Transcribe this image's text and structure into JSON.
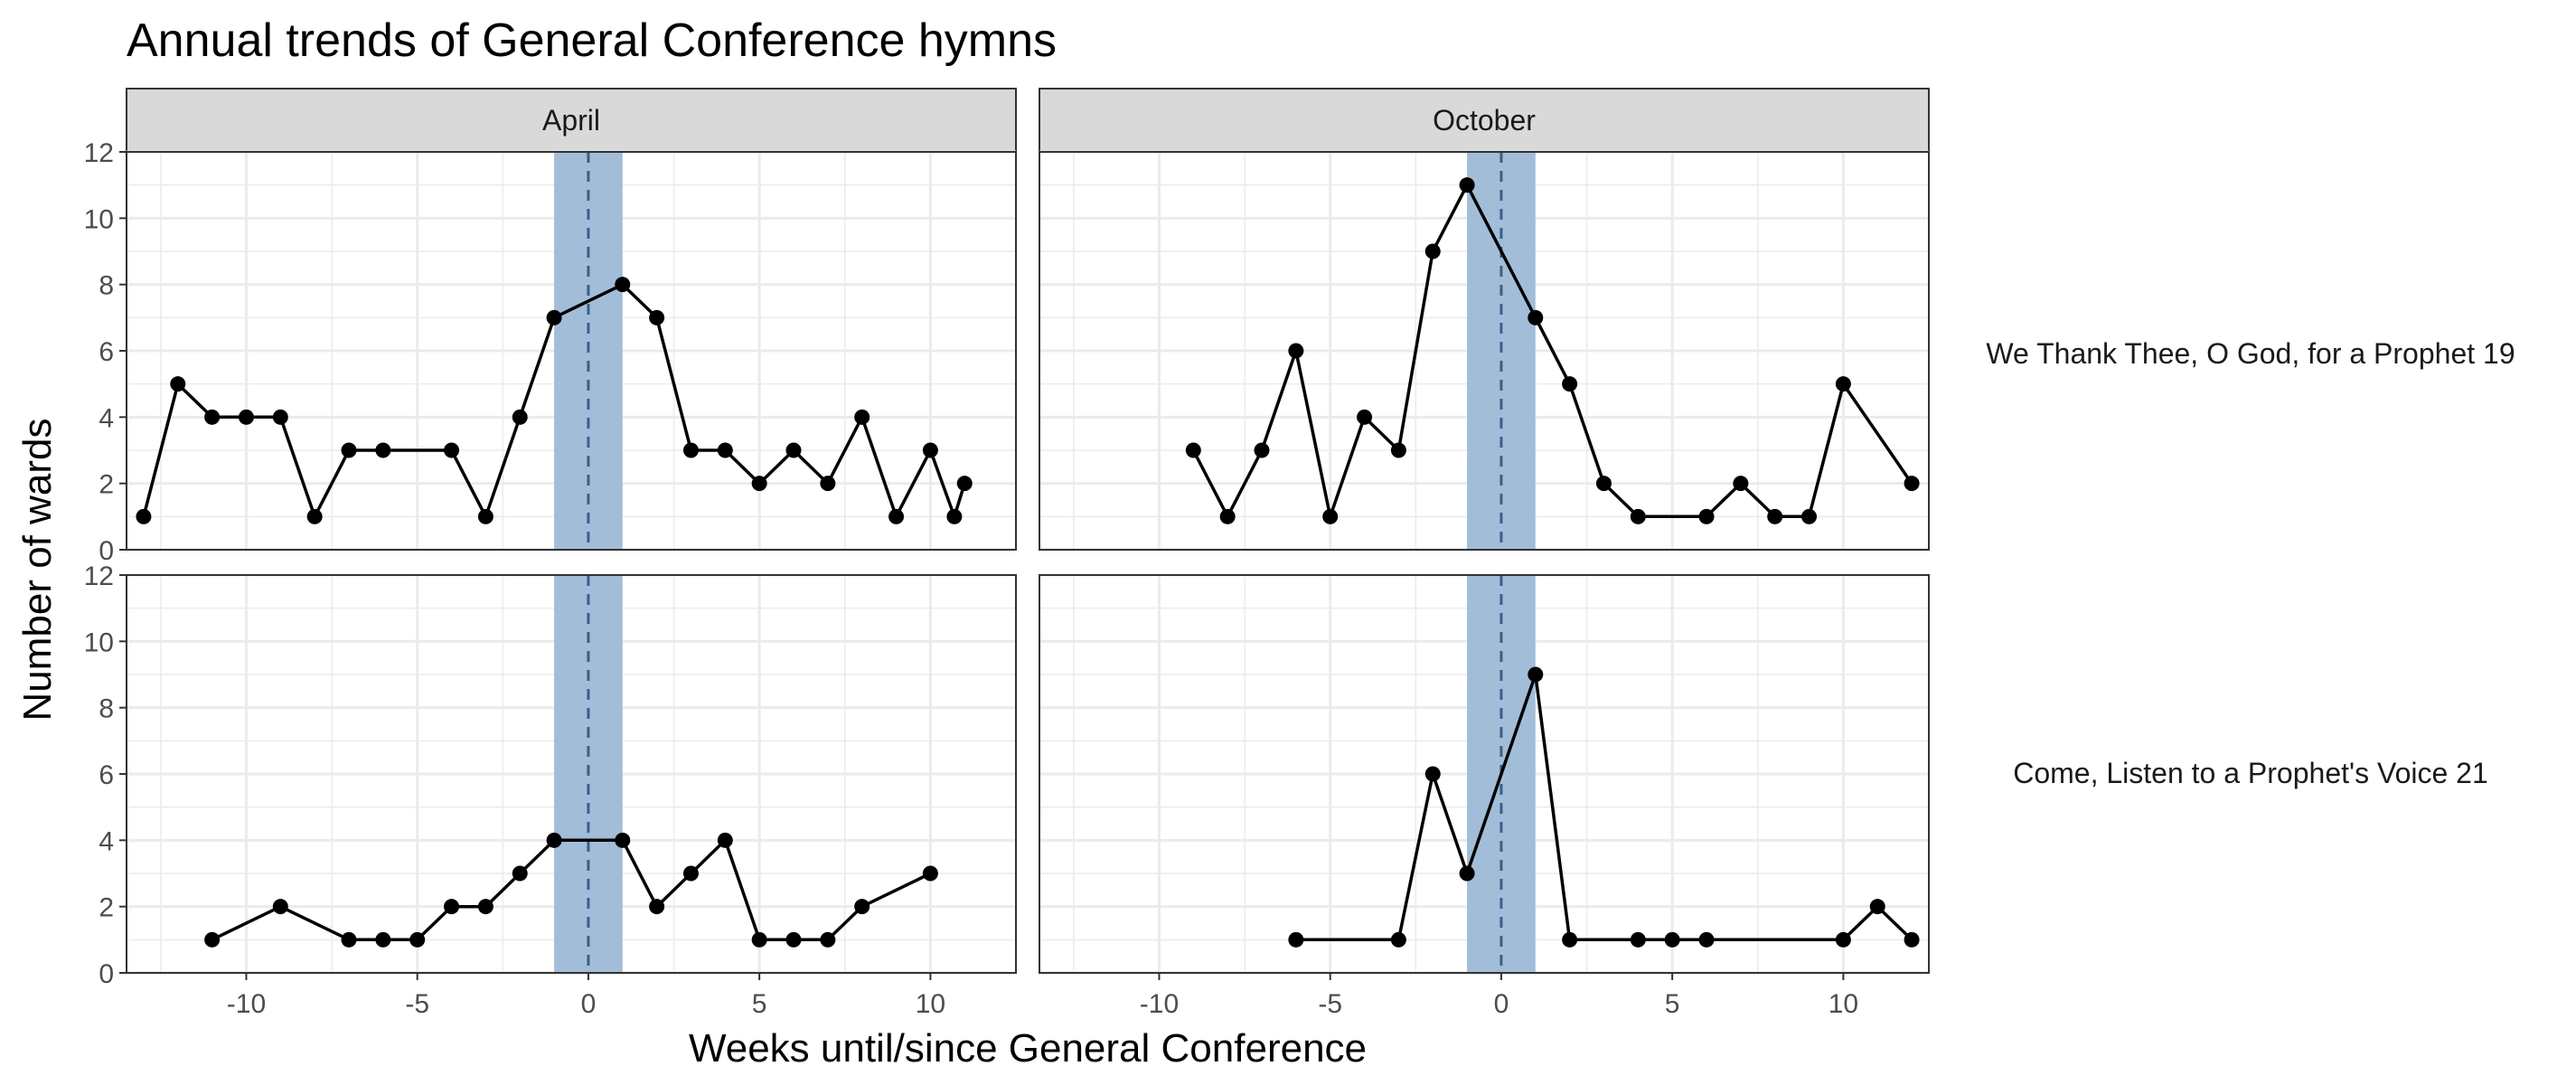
{
  "chart_data": {
    "type": "line",
    "title": "Annual trends of General Conference hymns",
    "xlabel": "Weeks until/since General Conference",
    "ylabel": "Number of wards",
    "columns": [
      "April",
      "October"
    ],
    "rows": [
      "We Thank Thee, O God, for a Prophet 19",
      "Come, Listen to a Prophet's Voice 21"
    ],
    "xlim": [
      -13.5,
      12.5
    ],
    "ylim": [
      0,
      12
    ],
    "x_ticks": [
      -10,
      -5,
      0,
      5,
      10
    ],
    "x_tick_labels": [
      "-10",
      "-5",
      "0",
      "5",
      "10"
    ],
    "y_ticks": [
      0,
      2,
      4,
      6,
      8,
      10,
      12
    ],
    "y_tick_labels": [
      "0",
      "2",
      "4",
      "6",
      "8",
      "10",
      "12"
    ],
    "highlight_band": [
      -1,
      1
    ],
    "reference_line_x": 0,
    "grid": true,
    "colors": {
      "band": "#a2bdd8",
      "reference_line": "#3b5f8a",
      "series": "#000000",
      "strip_background": "#d9d9d9",
      "panel_border": "#333333",
      "grid": "#ebebeb"
    },
    "panels": [
      {
        "row": 0,
        "column": 0,
        "x": [
          -13,
          -12,
          -11,
          -10,
          -9,
          -8,
          -7,
          -6,
          -4,
          -3,
          -2,
          -1,
          1,
          2,
          3,
          4,
          5,
          6,
          7,
          8,
          9,
          10,
          10.7,
          11
        ],
        "y": [
          1,
          5,
          4,
          4,
          4,
          1,
          3,
          3,
          3,
          1,
          4,
          7,
          8,
          7,
          3,
          3,
          2,
          3,
          2,
          4,
          1,
          3,
          1,
          2
        ]
      },
      {
        "row": 0,
        "column": 1,
        "x": [
          -9,
          -8,
          -7,
          -6,
          -5,
          -4,
          -3,
          -2,
          -1,
          1,
          2,
          3,
          4,
          6,
          7,
          8,
          9,
          10,
          12
        ],
        "y": [
          3,
          1,
          3,
          6,
          1,
          4,
          3,
          9,
          11,
          7,
          5,
          2,
          1,
          1,
          2,
          1,
          1,
          5,
          2
        ]
      },
      {
        "row": 1,
        "column": 0,
        "x": [
          -11,
          -9,
          -7,
          -6,
          -5,
          -4,
          -3,
          -2,
          -1,
          1,
          2,
          3,
          4,
          5,
          6,
          7,
          8,
          10
        ],
        "y": [
          1,
          2,
          1,
          1,
          1,
          2,
          2,
          3,
          4,
          4,
          2,
          3,
          4,
          1,
          1,
          1,
          2,
          3
        ]
      },
      {
        "row": 1,
        "column": 1,
        "x": [
          -6,
          -3,
          -2,
          -1,
          1,
          2,
          4,
          5,
          6,
          10,
          11,
          12
        ],
        "y": [
          1,
          1,
          6,
          3,
          9,
          1,
          1,
          1,
          1,
          1,
          2,
          1
        ]
      }
    ]
  }
}
